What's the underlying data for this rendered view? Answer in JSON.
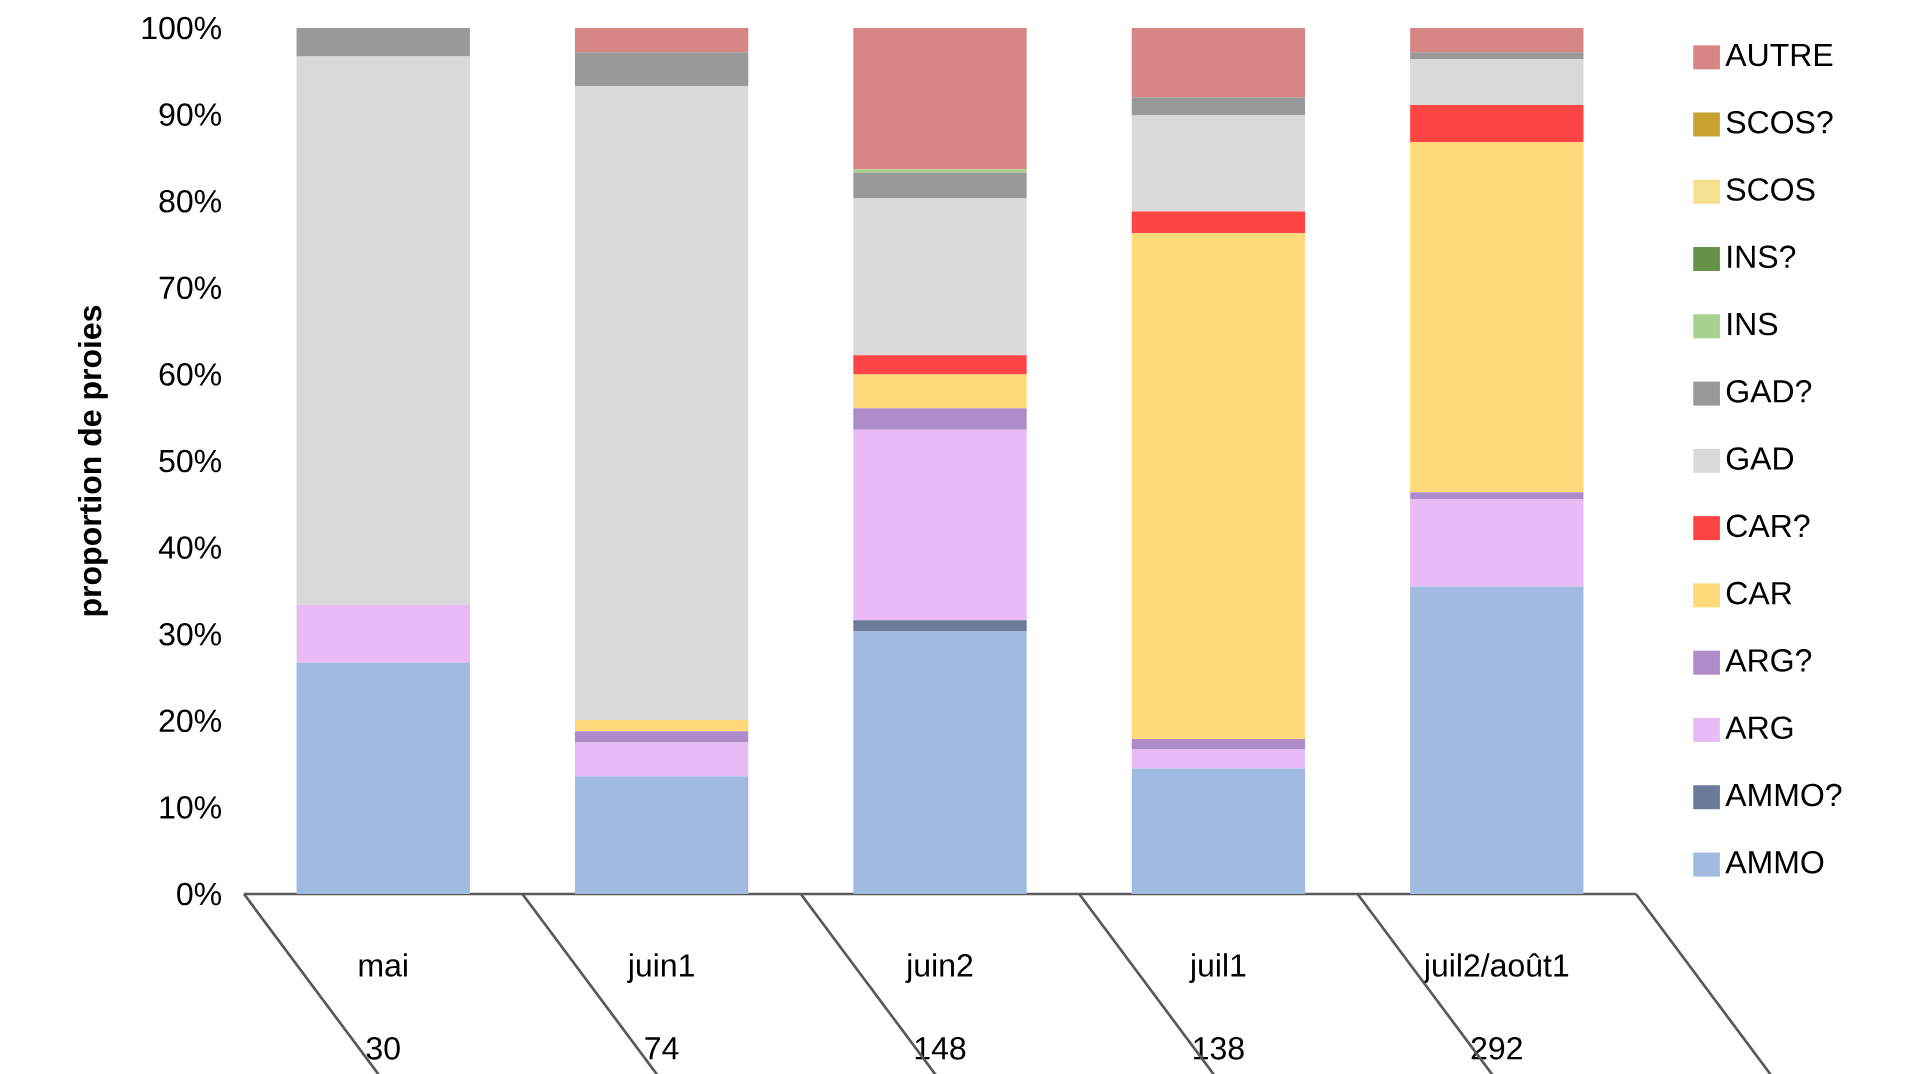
{
  "chart_data": {
    "type": "bar",
    "stacked": true,
    "ylabel": "proportion de proies",
    "categories": [
      "mai",
      "juin1",
      "juin2",
      "juil1",
      "juil2/août1"
    ],
    "series": [
      {
        "name": "AMMO",
        "color": "#a1bbe0",
        "values": [
          26.7,
          13.6,
          30.3,
          14.5,
          35.5
        ]
      },
      {
        "name": "AMMO?",
        "color": "#6b7a99",
        "values": [
          0,
          0,
          1.3,
          0,
          0
        ]
      },
      {
        "name": "ARG",
        "color": "#e8bbf6",
        "values": [
          6.7,
          3.9,
          22.0,
          2.2,
          10.1
        ]
      },
      {
        "name": "ARG?",
        "color": "#b08bc9",
        "values": [
          0,
          1.3,
          2.5,
          1.2,
          0.8
        ]
      },
      {
        "name": "CAR",
        "color": "#ffd97a",
        "values": [
          0,
          1.3,
          3.9,
          58.4,
          40.4
        ]
      },
      {
        "name": "CAR?",
        "color": "#ff4444",
        "values": [
          0,
          0,
          2.2,
          2.5,
          4.3
        ]
      },
      {
        "name": "GAD",
        "color": "#d9d9d9",
        "values": [
          63.3,
          73.2,
          18.1,
          11.1,
          5.3
        ]
      },
      {
        "name": "GAD?",
        "color": "#999999",
        "values": [
          3.3,
          3.9,
          3.0,
          2.1,
          0.8
        ]
      },
      {
        "name": "INS",
        "color": "#a9d18e",
        "values": [
          0,
          0,
          0.4,
          0,
          0
        ]
      },
      {
        "name": "INS?",
        "color": "#669148",
        "values": [
          0,
          0,
          0,
          0,
          0
        ]
      },
      {
        "name": "SCOS",
        "color": "#f4e08f",
        "values": [
          0,
          0,
          0,
          0,
          0
        ]
      },
      {
        "name": "SCOS?",
        "color": "#c9a332",
        "values": [
          0,
          0,
          0,
          0,
          0
        ]
      },
      {
        "name": "AUTRE",
        "color": "#d78585",
        "values": [
          0,
          2.8,
          16.3,
          8.0,
          2.8
        ]
      }
    ],
    "ylim": [
      0,
      100
    ],
    "yticks": [
      {
        "value": 0,
        "label": "0%"
      },
      {
        "value": 10,
        "label": "10%"
      },
      {
        "value": 20,
        "label": "20%"
      },
      {
        "value": 30,
        "label": "30%"
      },
      {
        "value": 40,
        "label": "40%"
      },
      {
        "value": 50,
        "label": "50%"
      },
      {
        "value": 60,
        "label": "60%"
      },
      {
        "value": 70,
        "label": "70%"
      },
      {
        "value": 80,
        "label": "80%"
      },
      {
        "value": 90,
        "label": "90%"
      },
      {
        "value": 100,
        "label": "100%"
      }
    ],
    "annotations": [
      "30",
      "74",
      "148",
      "138",
      "292"
    ],
    "grid": false,
    "legend": "right"
  }
}
